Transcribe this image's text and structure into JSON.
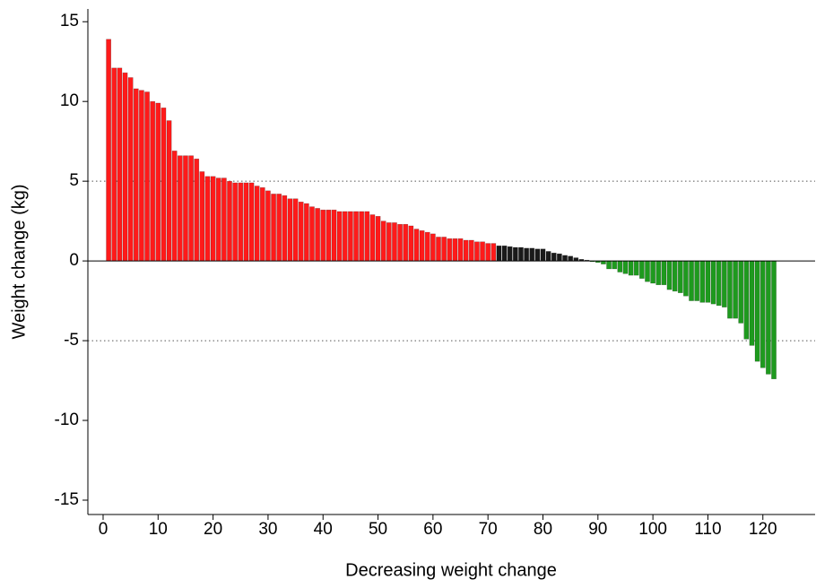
{
  "chart_data": {
    "type": "bar",
    "x_label": "Decreasing weight change",
    "y_label": "Weight change (kg)",
    "xlim": [
      -2.77,
      129.5
    ],
    "ylim": [
      -15.9,
      15.8
    ],
    "xticks": [
      0,
      10,
      20,
      30,
      40,
      50,
      60,
      70,
      80,
      90,
      100,
      110,
      120
    ],
    "yticks": [
      -15,
      -10,
      -5,
      0,
      5,
      10,
      15
    ],
    "dotted_lines": [
      5,
      -5
    ],
    "series": [
      {
        "color": "#ff1a1a",
        "x": [
          1,
          2,
          3,
          4,
          5,
          6,
          7,
          8,
          9,
          10,
          11,
          12,
          13,
          14,
          15,
          16,
          17,
          18,
          19,
          20,
          21,
          22,
          23,
          24,
          25,
          26,
          27,
          28,
          29,
          30,
          31,
          32,
          33,
          34,
          35,
          36,
          37,
          38,
          39,
          40,
          41,
          42,
          43,
          44,
          45,
          46,
          47,
          48,
          49,
          50,
          51,
          52,
          53,
          54,
          55,
          56,
          57,
          58,
          59,
          60,
          61,
          62,
          63,
          64,
          65,
          66,
          67,
          68,
          69,
          70,
          71
        ],
        "values": [
          13.9,
          12.1,
          12.1,
          11.8,
          11.5,
          10.8,
          10.7,
          10.6,
          10.0,
          9.9,
          9.6,
          8.8,
          6.9,
          6.6,
          6.6,
          6.6,
          6.4,
          5.6,
          5.3,
          5.3,
          5.2,
          5.2,
          5.0,
          4.9,
          4.9,
          4.9,
          4.9,
          4.7,
          4.6,
          4.4,
          4.2,
          4.2,
          4.1,
          3.9,
          3.9,
          3.7,
          3.6,
          3.4,
          3.3,
          3.2,
          3.2,
          3.2,
          3.1,
          3.1,
          3.1,
          3.1,
          3.1,
          3.1,
          2.9,
          2.8,
          2.5,
          2.4,
          2.4,
          2.3,
          2.3,
          2.2,
          2.0,
          1.9,
          1.8,
          1.7,
          1.5,
          1.5,
          1.4,
          1.4,
          1.4,
          1.3,
          1.3,
          1.2,
          1.2,
          1.1,
          1.1
        ]
      },
      {
        "color": "#1a1a1a",
        "x": [
          72,
          73,
          74,
          75,
          76,
          77,
          78,
          79,
          80,
          81,
          82,
          83,
          84,
          85,
          86,
          87,
          88
        ],
        "values": [
          0.95,
          0.95,
          0.9,
          0.85,
          0.85,
          0.8,
          0.8,
          0.75,
          0.75,
          0.6,
          0.5,
          0.45,
          0.35,
          0.3,
          0.2,
          0.1,
          0.05
        ]
      },
      {
        "color": "#1e9a1e",
        "x": [
          89,
          90,
          91,
          92,
          93,
          94,
          95,
          96,
          97,
          98,
          99,
          100,
          101,
          102,
          103,
          104,
          105,
          106,
          107,
          108,
          109,
          110,
          111,
          112,
          113,
          114,
          115,
          116,
          117,
          118,
          119,
          120,
          121,
          122
        ],
        "values": [
          -0.05,
          -0.1,
          -0.2,
          -0.5,
          -0.5,
          -0.7,
          -0.8,
          -0.9,
          -0.9,
          -1.1,
          -1.3,
          -1.4,
          -1.5,
          -1.5,
          -1.8,
          -1.9,
          -2.0,
          -2.2,
          -2.5,
          -2.5,
          -2.6,
          -2.6,
          -2.7,
          -2.8,
          -2.9,
          -3.6,
          -3.6,
          -3.9,
          -4.9,
          -5.3,
          -6.3,
          -6.7,
          -7.1,
          -7.4
        ]
      }
    ]
  }
}
